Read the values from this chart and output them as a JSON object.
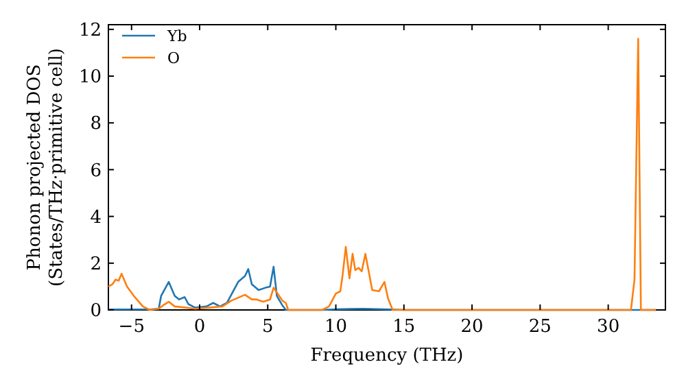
{
  "chart_data": {
    "type": "line",
    "xlabel": "Frequency (THz)",
    "ylabel": "Phonon projected DOS\n(States/THz·primitive cell)",
    "xlim": [
      -6.7,
      34.2
    ],
    "ylim": [
      0,
      12.2
    ],
    "xticks": [
      -5,
      0,
      5,
      10,
      15,
      20,
      25,
      30
    ],
    "yticks": [
      0,
      2,
      4,
      6,
      8,
      10,
      12
    ],
    "legend": "top left",
    "grid": false,
    "marker": "none",
    "line_style": "solid",
    "series": [
      {
        "name": "Yb",
        "color": "#1f77b4",
        "x": [
          -6.7,
          -3.5,
          -3,
          -2.83,
          -2.27,
          -1.83,
          -1.5,
          -1.1,
          -0.83,
          -0.33,
          0.5,
          1,
          1.5,
          2,
          2.83,
          3.33,
          3.57,
          3.83,
          4.33,
          4.83,
          5.17,
          5.43,
          5.67,
          6.07,
          6.33,
          9,
          10,
          12,
          14,
          15,
          33.5
        ],
        "values": [
          0.02,
          0.03,
          0.05,
          0.6,
          1.2,
          0.6,
          0.45,
          0.55,
          0.25,
          0.1,
          0.15,
          0.3,
          0.15,
          0.3,
          1.2,
          1.45,
          1.75,
          1.1,
          0.85,
          0.95,
          1.0,
          1.85,
          0.6,
          0.2,
          0,
          0,
          0.03,
          0.05,
          0.02,
          0,
          0
        ]
      },
      {
        "name": "O",
        "color": "#ff7f0e",
        "x": [
          -6.7,
          -6.4,
          -6.17,
          -5.95,
          -5.73,
          -5.33,
          -4.83,
          -4.17,
          -3.67,
          -3,
          -2.67,
          -2.27,
          -1.83,
          -1,
          -0.33,
          0.67,
          1.67,
          2.33,
          3.33,
          3.83,
          4.17,
          4.67,
          5.17,
          5.43,
          5.67,
          6.07,
          6.33,
          6.5,
          9,
          9.5,
          10,
          10.33,
          10.5,
          10.73,
          11,
          11.23,
          11.43,
          11.67,
          11.9,
          12.17,
          12.43,
          12.67,
          13.17,
          13.57,
          13.83,
          14.17,
          31.67,
          31.93,
          32.2,
          32.4,
          33.5
        ],
        "values": [
          1.0,
          1.1,
          1.3,
          1.25,
          1.55,
          1.0,
          0.6,
          0.15,
          0,
          0.05,
          0.2,
          0.35,
          0.15,
          0.1,
          0.05,
          0.1,
          0.15,
          0.4,
          0.65,
          0.45,
          0.45,
          0.35,
          0.45,
          0.95,
          0.75,
          0.4,
          0.3,
          0,
          0,
          0.15,
          0.7,
          0.8,
          1.5,
          2.7,
          1.35,
          2.4,
          1.7,
          1.8,
          1.65,
          2.4,
          1.6,
          0.85,
          0.8,
          1.2,
          0.5,
          0,
          0,
          1.3,
          11.6,
          0,
          0
        ]
      }
    ]
  }
}
